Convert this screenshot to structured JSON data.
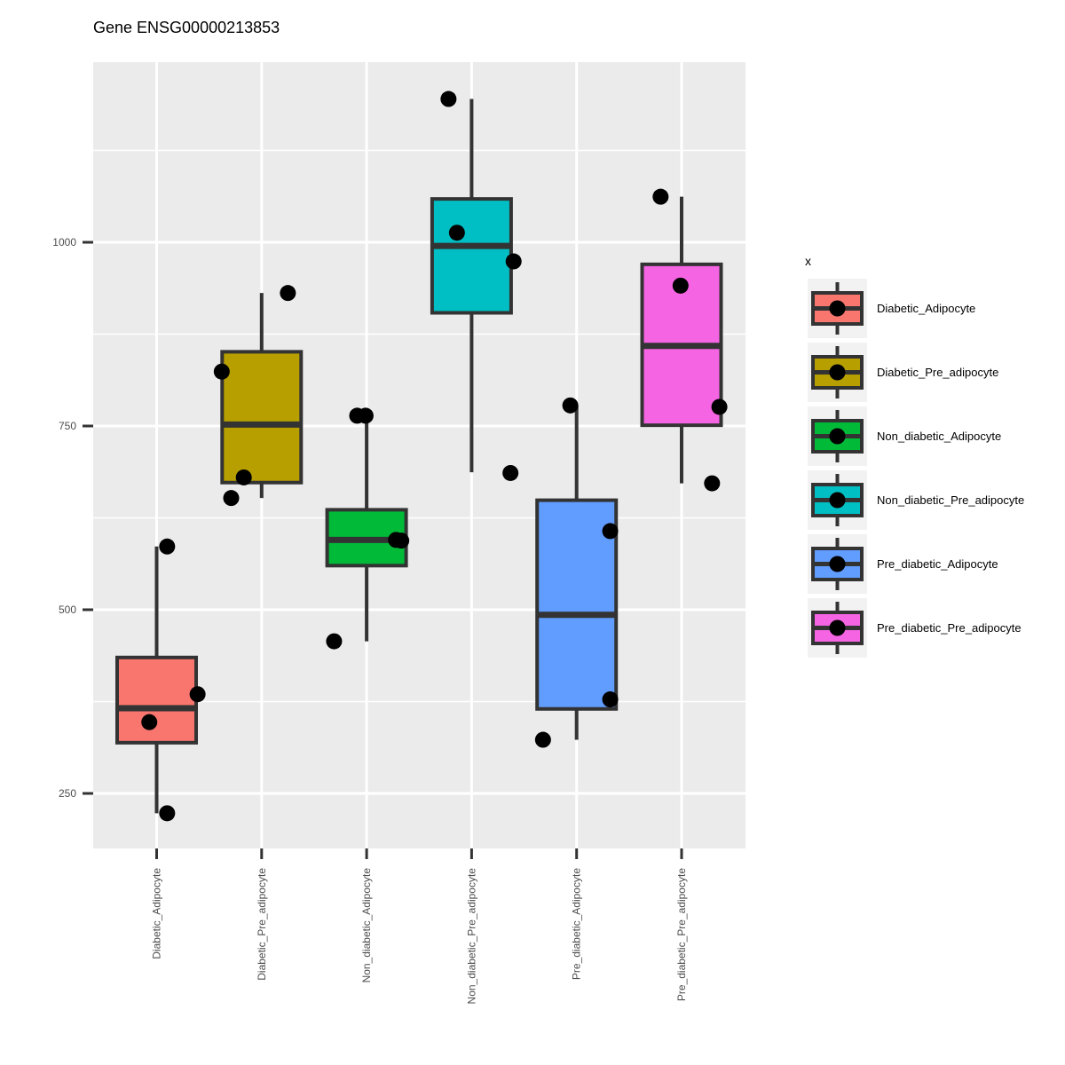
{
  "chart_data": {
    "type": "box",
    "title": "Gene ENSG00000213853",
    "xlabel": "",
    "ylabel": "",
    "ylim": [
      175,
      1245
    ],
    "y_ticks": [
      250,
      500,
      750,
      1000
    ],
    "grid": true,
    "legend": {
      "title": "x",
      "position": "right"
    },
    "categories": [
      "Diabetic_Adipocyte",
      "Diabetic_Pre_adipocyte",
      "Non_diabetic_Adipocyte",
      "Non_diabetic_Pre_adipocyte",
      "Pre_diabetic_Adipocyte",
      "Pre_diabetic_Pre_adipocyte"
    ],
    "legend_labels": [
      "Diabetic_Adipocyte",
      "Diabetic_Pre_adipocyte",
      "Non_diabetic_Adipocyte",
      "Non_diabetic_Pre_adipocyte",
      "Pre_diabetic_Adipocyte",
      "Pre_diabetic_Pre_adipocyte"
    ],
    "colors": [
      "#F8766D",
      "#B79F00",
      "#00BA38",
      "#00BFC4",
      "#619CFF",
      "#F564E3"
    ],
    "boxes": [
      {
        "category": "Diabetic_Adipocyte",
        "whisker_low": 223,
        "q1": 319,
        "median": 366,
        "q3": 435,
        "whisker_high": 586
      },
      {
        "category": "Diabetic_Pre_adipocyte",
        "whisker_low": 652,
        "q1": 673,
        "median": 752,
        "q3": 851,
        "whisker_high": 931
      },
      {
        "category": "Non_diabetic_Adipocyte",
        "whisker_low": 457,
        "q1": 560,
        "median": 595,
        "q3": 636,
        "whisker_high": 764
      },
      {
        "category": "Non_diabetic_Pre_adipocyte",
        "whisker_low": 687,
        "q1": 904,
        "median": 995,
        "q3": 1059,
        "whisker_high": 1195
      },
      {
        "category": "Pre_diabetic_Adipocyte",
        "whisker_low": 323,
        "q1": 365,
        "median": 493,
        "q3": 649,
        "whisker_high": 778
      },
      {
        "category": "Pre_diabetic_Pre_adipocyte",
        "whisker_low": 672,
        "q1": 751,
        "median": 859,
        "q3": 970,
        "whisker_high": 1062
      }
    ],
    "points": [
      {
        "x": 1,
        "jitter": -0.07,
        "y": 347
      },
      {
        "x": 1,
        "jitter": 0.1,
        "y": 223
      },
      {
        "x": 1,
        "jitter": 0.39,
        "y": 385
      },
      {
        "x": 1,
        "jitter": 0.1,
        "y": 586
      },
      {
        "x": 2,
        "jitter": -0.38,
        "y": 824
      },
      {
        "x": 2,
        "jitter": -0.29,
        "y": 652
      },
      {
        "x": 2,
        "jitter": -0.17,
        "y": 680
      },
      {
        "x": 2,
        "jitter": 0.25,
        "y": 931
      },
      {
        "x": 3,
        "jitter": -0.31,
        "y": 457
      },
      {
        "x": 3,
        "jitter": -0.09,
        "y": 764
      },
      {
        "x": 3,
        "jitter": -0.01,
        "y": 764
      },
      {
        "x": 3,
        "jitter": 0.28,
        "y": 595
      },
      {
        "x": 3,
        "jitter": 0.33,
        "y": 594
      },
      {
        "x": 4,
        "jitter": -0.22,
        "y": 1195
      },
      {
        "x": 4,
        "jitter": -0.14,
        "y": 1013
      },
      {
        "x": 4,
        "jitter": 0.4,
        "y": 974
      },
      {
        "x": 4,
        "jitter": 0.37,
        "y": 686
      },
      {
        "x": 5,
        "jitter": -0.32,
        "y": 323
      },
      {
        "x": 5,
        "jitter": -0.06,
        "y": 778
      },
      {
        "x": 5,
        "jitter": 0.32,
        "y": 607
      },
      {
        "x": 5,
        "jitter": 0.32,
        "y": 378
      },
      {
        "x": 6,
        "jitter": -0.2,
        "y": 1062
      },
      {
        "x": 6,
        "jitter": -0.01,
        "y": 941
      },
      {
        "x": 6,
        "jitter": 0.36,
        "y": 776
      },
      {
        "x": 6,
        "jitter": 0.29,
        "y": 672
      }
    ]
  }
}
